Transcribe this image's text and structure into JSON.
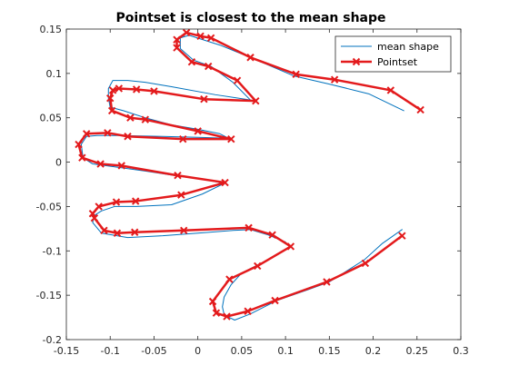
{
  "chart_data": {
    "type": "line",
    "title": "Pointset is closest to the mean shape",
    "xlabel": "",
    "ylabel": "",
    "xlim": [
      -0.15,
      0.3
    ],
    "ylim": [
      -0.2,
      0.15
    ],
    "xticks": [
      -0.15,
      -0.1,
      -0.05,
      0,
      0.05,
      0.1,
      0.15,
      0.2,
      0.25,
      0.3
    ],
    "yticks": [
      -0.2,
      -0.15,
      -0.1,
      -0.05,
      0,
      0.05,
      0.1,
      0.15
    ],
    "xtick_labels": [
      "-0.15",
      "-0.1",
      "-0.05",
      "0",
      "0.05",
      "0.1",
      "0.15",
      "0.2",
      "0.25",
      "0.3"
    ],
    "ytick_labels": [
      "-0.2",
      "-0.15",
      "-0.1",
      "-0.05",
      "0",
      "0.05",
      "0.1",
      "0.15"
    ],
    "grid": false,
    "legend_position": "top-right",
    "series": [
      {
        "name": "mean shape",
        "color": "#0072BD",
        "style": "thin-line",
        "points": [
          [
            0.235,
            0.058
          ],
          [
            0.195,
            0.077
          ],
          [
            0.15,
            0.088
          ],
          [
            0.11,
            0.097
          ],
          [
            0.06,
            0.118
          ],
          [
            0.025,
            0.132
          ],
          [
            -0.01,
            0.143
          ],
          [
            -0.02,
            0.14
          ],
          [
            -0.02,
            0.128
          ],
          [
            -0.005,
            0.115
          ],
          [
            0.015,
            0.108
          ],
          [
            0.04,
            0.09
          ],
          [
            0.06,
            0.07
          ],
          [
            0.02,
            0.076
          ],
          [
            -0.03,
            0.085
          ],
          [
            -0.06,
            0.09
          ],
          [
            -0.08,
            0.092
          ],
          [
            -0.097,
            0.092
          ],
          [
            -0.102,
            0.083
          ],
          [
            -0.102,
            0.072
          ],
          [
            -0.1,
            0.062
          ],
          [
            -0.085,
            0.058
          ],
          [
            -0.06,
            0.05
          ],
          [
            -0.03,
            0.042
          ],
          [
            0.0,
            0.037
          ],
          [
            0.025,
            0.032
          ],
          [
            0.035,
            0.027
          ],
          [
            0.0,
            0.028
          ],
          [
            -0.04,
            0.029
          ],
          [
            -0.09,
            0.03
          ],
          [
            -0.115,
            0.03
          ],
          [
            -0.127,
            0.029
          ],
          [
            -0.133,
            0.02
          ],
          [
            -0.131,
            0.005
          ],
          [
            -0.12,
            -0.002
          ],
          [
            -0.09,
            -0.006
          ],
          [
            -0.06,
            -0.01
          ],
          [
            -0.02,
            -0.016
          ],
          [
            0.01,
            -0.02
          ],
          [
            0.03,
            -0.024
          ],
          [
            0.005,
            -0.036
          ],
          [
            -0.03,
            -0.048
          ],
          [
            -0.07,
            -0.05
          ],
          [
            -0.095,
            -0.05
          ],
          [
            -0.11,
            -0.055
          ],
          [
            -0.118,
            -0.06
          ],
          [
            -0.12,
            -0.068
          ],
          [
            -0.11,
            -0.08
          ],
          [
            -0.08,
            -0.085
          ],
          [
            -0.04,
            -0.083
          ],
          [
            0.0,
            -0.08
          ],
          [
            0.04,
            -0.077
          ],
          [
            0.06,
            -0.076
          ],
          [
            0.08,
            -0.082
          ],
          [
            0.1,
            -0.09
          ],
          [
            0.105,
            -0.096
          ],
          [
            0.08,
            -0.11
          ],
          [
            0.05,
            -0.125
          ],
          [
            0.038,
            -0.138
          ],
          [
            0.03,
            -0.152
          ],
          [
            0.028,
            -0.163
          ],
          [
            0.03,
            -0.172
          ],
          [
            0.042,
            -0.178
          ],
          [
            0.06,
            -0.171
          ],
          [
            0.09,
            -0.156
          ],
          [
            0.125,
            -0.144
          ],
          [
            0.15,
            -0.135
          ],
          [
            0.19,
            -0.11
          ],
          [
            0.21,
            -0.092
          ],
          [
            0.233,
            -0.076
          ]
        ]
      },
      {
        "name": "Pointset",
        "color": "#E31A1C",
        "style": "thick-line-with-x-markers",
        "points": [
          [
            0.254,
            0.059
          ],
          [
            0.22,
            0.081
          ],
          [
            0.156,
            0.093
          ],
          [
            0.112,
            0.099
          ],
          [
            0.06,
            0.118
          ],
          [
            0.015,
            0.14
          ],
          [
            0.003,
            0.142
          ],
          [
            -0.013,
            0.146
          ],
          [
            -0.024,
            0.138
          ],
          [
            -0.024,
            0.129
          ],
          [
            -0.007,
            0.113
          ],
          [
            0.012,
            0.108
          ],
          [
            0.045,
            0.092
          ],
          [
            0.066,
            0.069
          ],
          [
            0.007,
            0.071
          ],
          [
            -0.05,
            0.08
          ],
          [
            -0.07,
            0.082
          ],
          [
            -0.09,
            0.083
          ],
          [
            -0.097,
            0.081
          ],
          [
            -0.1,
            0.072
          ],
          [
            -0.098,
            0.058
          ],
          [
            -0.077,
            0.05
          ],
          [
            -0.06,
            0.048
          ],
          [
            0.0,
            0.035
          ],
          [
            0.038,
            0.026
          ],
          [
            -0.017,
            0.026
          ],
          [
            -0.08,
            0.029
          ],
          [
            -0.103,
            0.033
          ],
          [
            -0.127,
            0.032
          ],
          [
            -0.136,
            0.02
          ],
          [
            -0.132,
            0.005
          ],
          [
            -0.111,
            -0.002
          ],
          [
            -0.087,
            -0.004
          ],
          [
            -0.023,
            -0.015
          ],
          [
            0.031,
            -0.023
          ],
          [
            -0.019,
            -0.037
          ],
          [
            -0.071,
            -0.044
          ],
          [
            -0.093,
            -0.045
          ],
          [
            -0.113,
            -0.05
          ],
          [
            -0.12,
            -0.058
          ],
          [
            -0.118,
            -0.063
          ],
          [
            -0.107,
            -0.077
          ],
          [
            -0.092,
            -0.08
          ],
          [
            -0.072,
            -0.079
          ],
          [
            -0.016,
            -0.077
          ],
          [
            0.058,
            -0.074
          ],
          [
            0.085,
            -0.082
          ],
          [
            0.106,
            -0.095
          ],
          [
            0.068,
            -0.117
          ],
          [
            0.036,
            -0.132
          ],
          [
            0.017,
            -0.157
          ],
          [
            0.021,
            -0.17
          ],
          [
            0.033,
            -0.174
          ],
          [
            0.057,
            -0.168
          ],
          [
            0.088,
            -0.156
          ],
          [
            0.147,
            -0.135
          ],
          [
            0.191,
            -0.114
          ],
          [
            0.233,
            -0.083
          ]
        ]
      }
    ]
  }
}
